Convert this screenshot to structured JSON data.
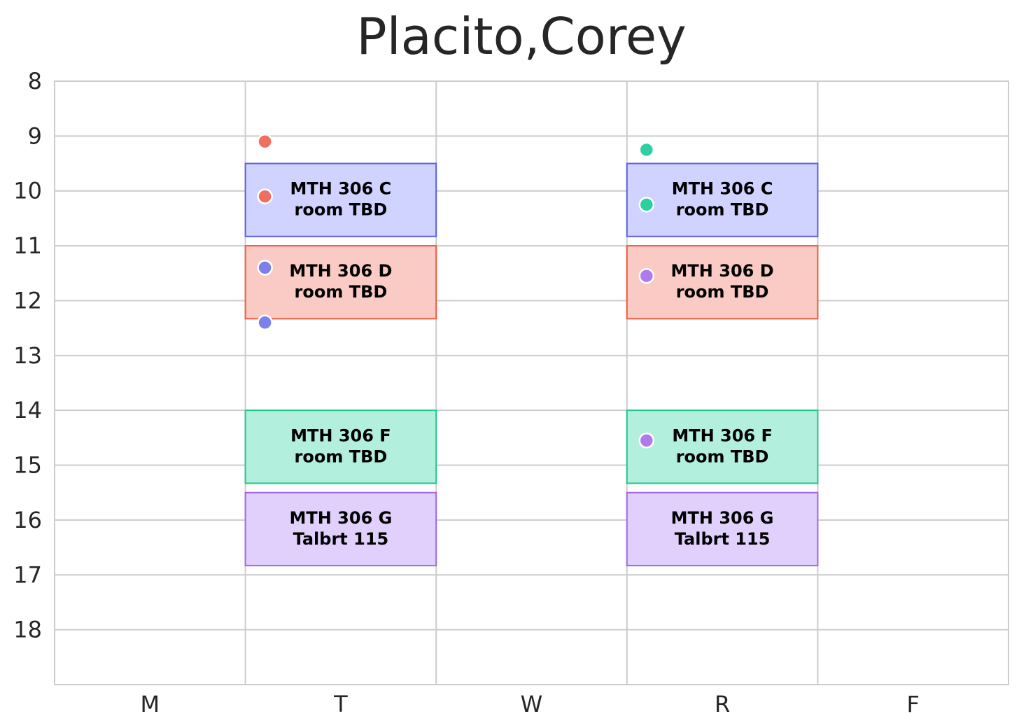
{
  "chart_data": {
    "type": "schedule",
    "title": "Placito,Corey",
    "days": [
      "M",
      "T",
      "W",
      "R",
      "F"
    ],
    "hours": [
      8,
      9,
      10,
      11,
      12,
      13,
      14,
      15,
      16,
      17,
      18
    ],
    "ylim": [
      8,
      19
    ],
    "grid": true,
    "blocks": [
      {
        "day": "T",
        "start": 9.5,
        "end": 10.83,
        "course": "MTH 306 C",
        "room": "room TBD",
        "color": "c"
      },
      {
        "day": "T",
        "start": 11.0,
        "end": 12.33,
        "course": "MTH 306 D",
        "room": "room TBD",
        "color": "d"
      },
      {
        "day": "T",
        "start": 14.0,
        "end": 15.33,
        "course": "MTH 306 F",
        "room": "room TBD",
        "color": "f"
      },
      {
        "day": "T",
        "start": 15.5,
        "end": 16.83,
        "course": "MTH 306 G",
        "room": "Talbrt 115",
        "color": "g"
      },
      {
        "day": "R",
        "start": 9.5,
        "end": 10.83,
        "course": "MTH 306 C",
        "room": "room TBD",
        "color": "c"
      },
      {
        "day": "R",
        "start": 11.0,
        "end": 12.33,
        "course": "MTH 306 D",
        "room": "room TBD",
        "color": "d"
      },
      {
        "day": "R",
        "start": 14.0,
        "end": 15.33,
        "course": "MTH 306 F",
        "room": "room TBD",
        "color": "f"
      },
      {
        "day": "R",
        "start": 15.5,
        "end": 16.83,
        "course": "MTH 306 G",
        "room": "Talbrt 115",
        "color": "g"
      }
    ],
    "points": [
      {
        "day": "T",
        "y": 9.1,
        "color": "#f07060"
      },
      {
        "day": "T",
        "y": 10.1,
        "color": "#f07060"
      },
      {
        "day": "T",
        "y": 11.4,
        "color": "#7b80ea"
      },
      {
        "day": "T",
        "y": 12.4,
        "color": "#7b80ea"
      },
      {
        "day": "R",
        "y": 9.25,
        "color": "#2ecfa0"
      },
      {
        "day": "R",
        "y": 10.25,
        "color": "#2ecfa0"
      },
      {
        "day": "R",
        "y": 11.55,
        "color": "#b07aee"
      },
      {
        "day": "R",
        "y": 14.55,
        "color": "#b07aee"
      }
    ],
    "palette": {
      "c": {
        "fill": "#d0d2ff",
        "stroke": "#5b60e0"
      },
      "d": {
        "fill": "#f9cbc4",
        "stroke": "#ee5a40"
      },
      "f": {
        "fill": "#b2efdd",
        "stroke": "#1fc78f"
      },
      "g": {
        "fill": "#e2d0fc",
        "stroke": "#a066e6"
      }
    },
    "grid_color": "#cccccc",
    "point_edge_color": "#ffffff"
  }
}
